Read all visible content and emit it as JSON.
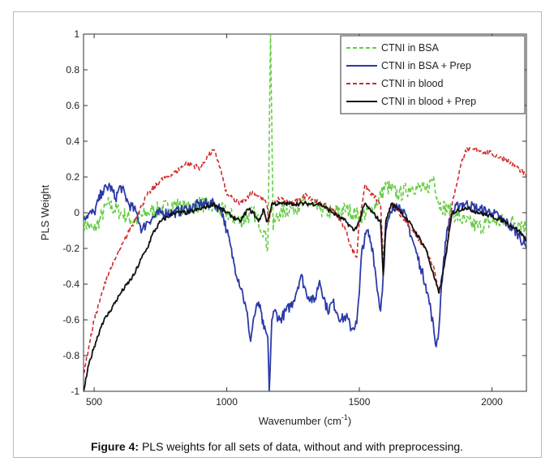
{
  "caption": {
    "label": "Figure 4:",
    "text": " PLS weights for all sets of data, without and with preprocessing."
  },
  "chart_data": {
    "type": "line",
    "xlabel": "Wavenumber (cm",
    "xlabel_sup": "-1",
    "xlabel_close": ")",
    "ylabel": "PLS Weight",
    "xlim": [
      460,
      2130
    ],
    "ylim": [
      -1,
      1
    ],
    "x_ticks": [
      500,
      1000,
      1500,
      2000
    ],
    "x_tick_labels": [
      "500",
      "1000",
      "1500",
      "2000"
    ],
    "y_ticks": [
      -1,
      -0.8,
      -0.6,
      -0.4,
      -0.2,
      0,
      0.2,
      0.4,
      0.6,
      0.8,
      1
    ],
    "y_tick_labels": [
      "-1",
      "-0.8",
      "-0.6",
      "-0.4",
      "-0.2",
      "0",
      "0.2",
      "0.4",
      "0.6",
      "0.8",
      "1"
    ],
    "grid": false,
    "legend_position": "top-right",
    "series": [
      {
        "name": "CTNI in BSA",
        "color": "#66cc44",
        "style": "dashed",
        "noise": 0.045,
        "x": [
          460,
          500,
          550,
          600,
          650,
          700,
          750,
          800,
          850,
          900,
          950,
          1000,
          1050,
          1100,
          1140,
          1155,
          1160,
          1165,
          1170,
          1175,
          1180,
          1200,
          1250,
          1300,
          1350,
          1400,
          1450,
          1500,
          1550,
          1600,
          1650,
          1700,
          1750,
          1780,
          1800,
          1850,
          1900,
          1950,
          2000,
          2050,
          2100,
          2130
        ],
        "values": [
          -0.05,
          -0.1,
          0.05,
          0.0,
          -0.05,
          0.0,
          0.02,
          0.05,
          0.02,
          0.05,
          0.03,
          0.0,
          -0.05,
          0.0,
          -0.1,
          -0.2,
          0.4,
          1.0,
          0.5,
          -0.1,
          -0.05,
          0.0,
          0.03,
          0.05,
          0.02,
          0.0,
          0.02,
          -0.02,
          0.02,
          0.15,
          0.1,
          0.15,
          0.12,
          0.2,
          0.05,
          0.0,
          -0.05,
          -0.08,
          -0.05,
          -0.05,
          -0.05,
          -0.08
        ]
      },
      {
        "name": "CTNI in BSA + Prep",
        "color": "#2b3aa8",
        "style": "solid",
        "noise": 0.03,
        "x": [
          460,
          500,
          530,
          560,
          580,
          600,
          630,
          660,
          680,
          700,
          750,
          800,
          850,
          900,
          950,
          980,
          1000,
          1030,
          1060,
          1080,
          1090,
          1100,
          1120,
          1140,
          1155,
          1160,
          1170,
          1180,
          1200,
          1250,
          1280,
          1300,
          1330,
          1350,
          1380,
          1400,
          1430,
          1450,
          1470,
          1490,
          1500,
          1510,
          1530,
          1550,
          1570,
          1580,
          1590,
          1600,
          1620,
          1640,
          1660,
          1680,
          1700,
          1730,
          1750,
          1770,
          1790,
          1800,
          1810,
          1830,
          1850,
          1880,
          1900,
          1950,
          2000,
          2050,
          2100,
          2130
        ],
        "values": [
          -0.02,
          0.0,
          0.12,
          0.15,
          0.08,
          0.15,
          0.05,
          0.0,
          -0.1,
          -0.05,
          0.0,
          0.0,
          0.02,
          0.05,
          0.05,
          0.02,
          -0.1,
          -0.3,
          -0.45,
          -0.6,
          -0.72,
          -0.6,
          -0.5,
          -0.65,
          -0.7,
          -1.0,
          -0.6,
          -0.55,
          -0.6,
          -0.5,
          -0.35,
          -0.45,
          -0.5,
          -0.38,
          -0.55,
          -0.5,
          -0.6,
          -0.58,
          -0.65,
          -0.62,
          -0.45,
          -0.2,
          -0.1,
          -0.2,
          -0.45,
          -0.55,
          -0.35,
          -0.1,
          0.0,
          0.05,
          0.02,
          -0.05,
          -0.15,
          -0.3,
          -0.4,
          -0.55,
          -0.75,
          -0.65,
          -0.4,
          -0.1,
          0.0,
          0.05,
          0.05,
          0.02,
          0.0,
          -0.05,
          -0.12,
          -0.2
        ]
      },
      {
        "name": "CTNI in blood",
        "color": "#d02b2b",
        "style": "dashed",
        "noise": 0.015,
        "x": [
          460,
          500,
          550,
          600,
          650,
          700,
          750,
          800,
          850,
          900,
          930,
          950,
          970,
          1000,
          1050,
          1100,
          1130,
          1150,
          1160,
          1170,
          1200,
          1250,
          1300,
          1350,
          1400,
          1430,
          1450,
          1470,
          1490,
          1500,
          1520,
          1550,
          1580,
          1590,
          1600,
          1620,
          1650,
          1700,
          1750,
          1780,
          1800,
          1820,
          1850,
          1880,
          1900,
          1950,
          2000,
          2050,
          2100,
          2130
        ],
        "values": [
          -0.9,
          -0.6,
          -0.35,
          -0.2,
          -0.05,
          0.1,
          0.18,
          0.22,
          0.28,
          0.25,
          0.32,
          0.35,
          0.28,
          0.1,
          0.05,
          0.12,
          0.08,
          0.05,
          -0.05,
          0.05,
          0.08,
          0.05,
          0.1,
          0.05,
          0.02,
          -0.05,
          -0.1,
          -0.2,
          -0.25,
          -0.05,
          0.15,
          0.1,
          0.05,
          -0.3,
          -0.05,
          0.05,
          0.0,
          -0.1,
          -0.2,
          -0.3,
          -0.45,
          -0.3,
          0.05,
          0.25,
          0.35,
          0.35,
          0.33,
          0.3,
          0.25,
          0.2
        ]
      },
      {
        "name": "CTNI in blood + Prep",
        "color": "#111111",
        "style": "solid",
        "noise": 0.012,
        "x": [
          460,
          480,
          500,
          530,
          560,
          600,
          650,
          680,
          700,
          720,
          750,
          800,
          850,
          900,
          950,
          1000,
          1050,
          1080,
          1100,
          1120,
          1140,
          1150,
          1160,
          1170,
          1200,
          1250,
          1300,
          1350,
          1400,
          1450,
          1480,
          1500,
          1520,
          1550,
          1580,
          1590,
          1600,
          1620,
          1650,
          1700,
          1750,
          1780,
          1800,
          1820,
          1850,
          1900,
          1950,
          2000,
          2050,
          2100,
          2130
        ],
        "values": [
          -1.0,
          -0.85,
          -0.75,
          -0.62,
          -0.55,
          -0.45,
          -0.35,
          -0.25,
          -0.2,
          -0.12,
          -0.05,
          0.0,
          0.0,
          0.02,
          0.05,
          0.0,
          -0.05,
          0.02,
          0.0,
          -0.05,
          0.02,
          -0.05,
          -0.02,
          0.05,
          0.05,
          0.05,
          0.05,
          0.05,
          0.0,
          -0.05,
          -0.1,
          -0.05,
          0.05,
          0.0,
          -0.05,
          -0.35,
          -0.05,
          0.05,
          0.02,
          -0.08,
          -0.2,
          -0.35,
          -0.45,
          -0.3,
          0.0,
          0.03,
          0.0,
          -0.02,
          -0.05,
          -0.1,
          -0.15
        ]
      }
    ]
  }
}
